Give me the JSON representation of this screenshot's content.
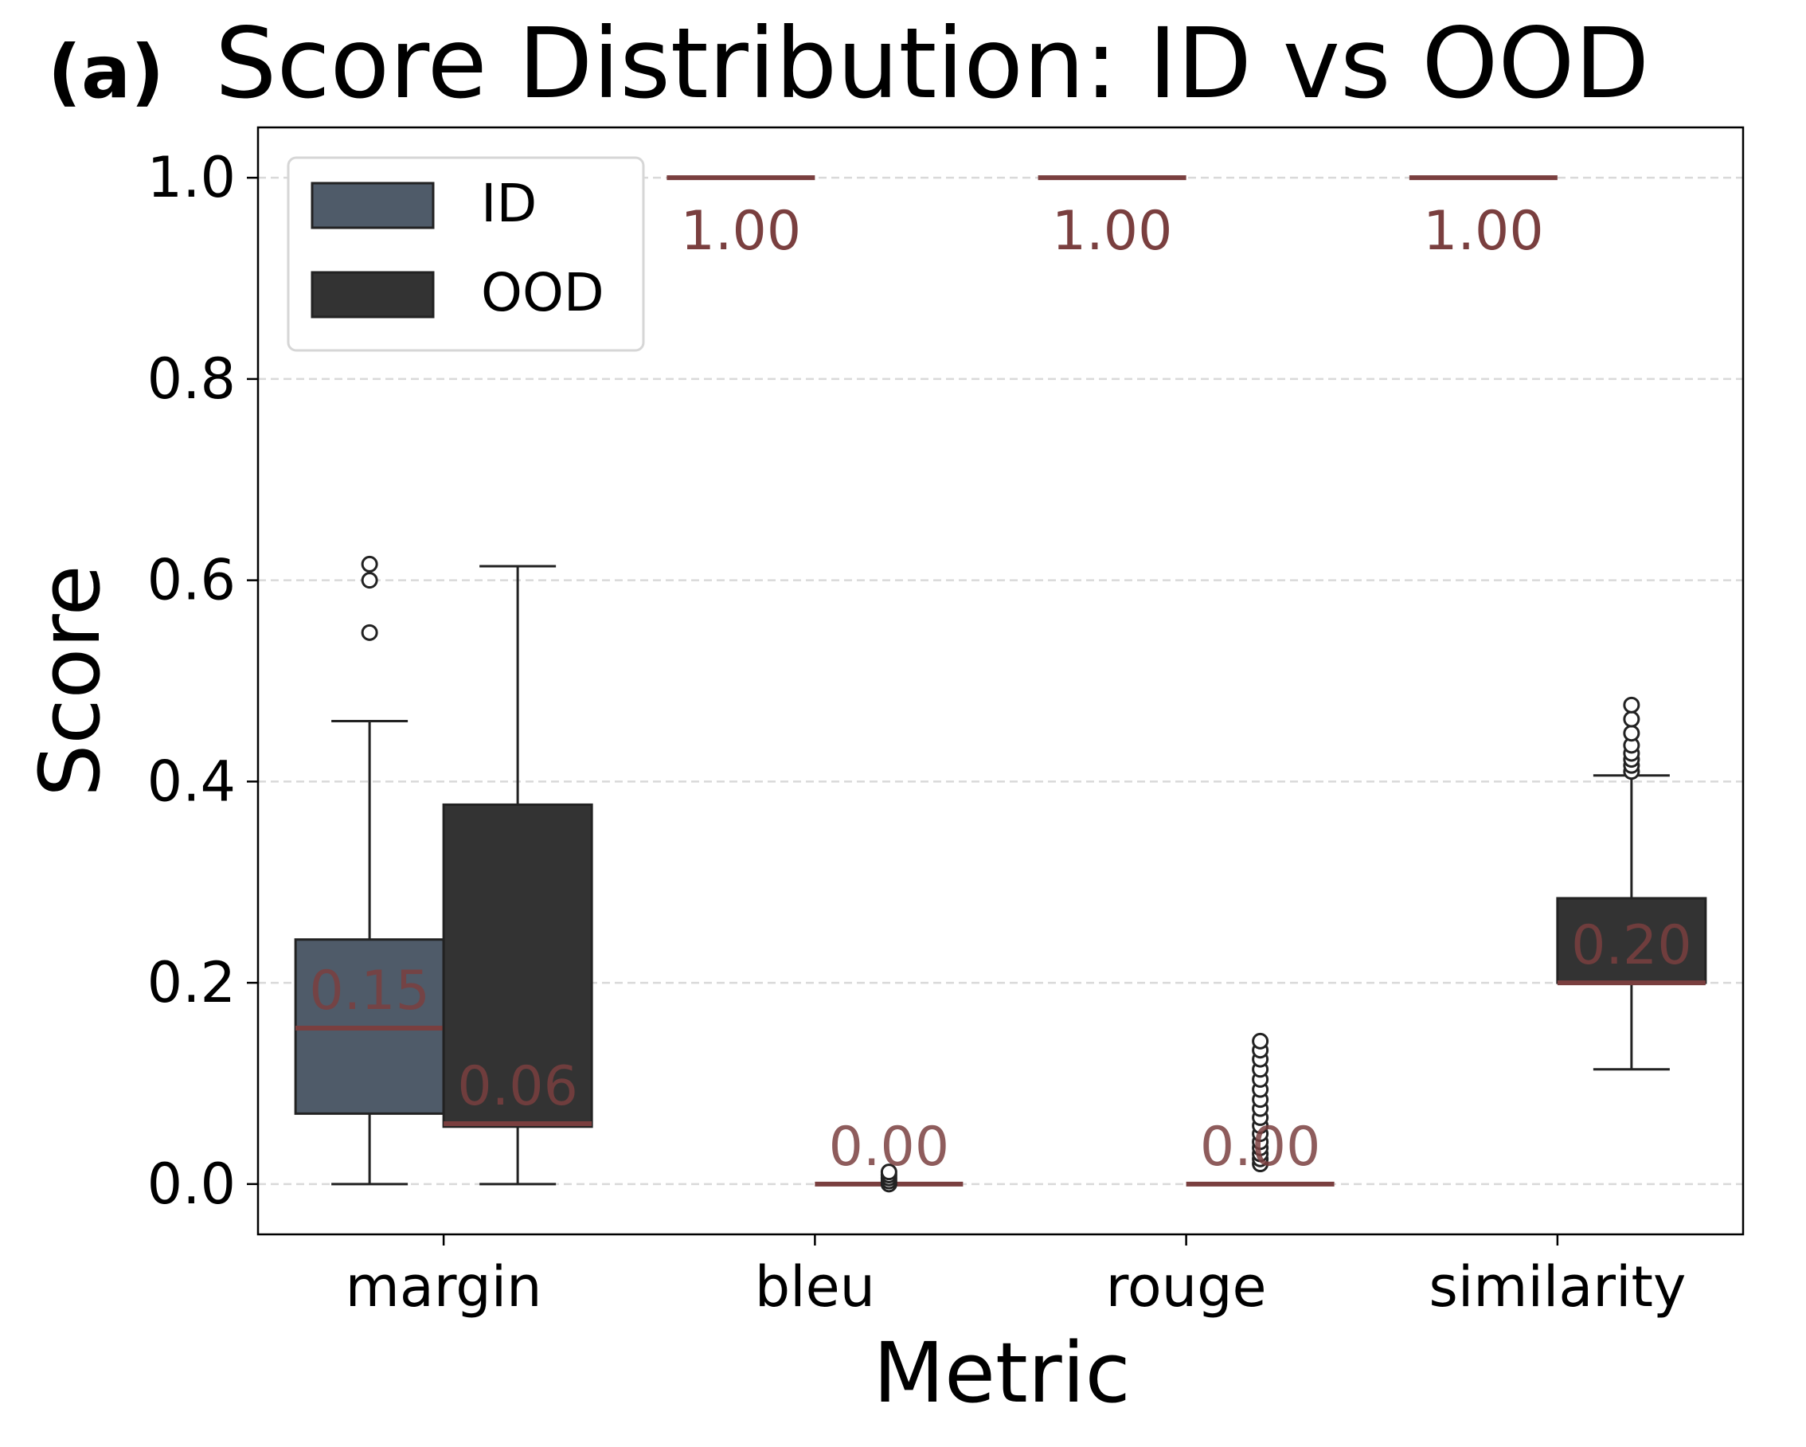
{
  "panel_label": "(a)",
  "chart_data": {
    "type": "box",
    "title": "Score Distribution: ID vs OOD",
    "xlabel": "Metric",
    "ylabel": "Score",
    "ylim": [
      -0.05,
      1.05
    ],
    "yticks": [
      0.0,
      0.2,
      0.4,
      0.6,
      0.8,
      1.0
    ],
    "ytick_labels": [
      "0.0",
      "0.2",
      "0.4",
      "0.6",
      "0.8",
      "1.0"
    ],
    "grid": "y-dashed",
    "categories": [
      "margin",
      "bleu",
      "rouge",
      "similarity"
    ],
    "legend": {
      "position": "top-left",
      "entries": [
        "ID",
        "OOD"
      ]
    },
    "colors": {
      "ID": "#4f5b69",
      "OOD": "#333333",
      "median": "#7a3f3f",
      "grid": "#d9d9d9"
    },
    "series": [
      {
        "name": "ID",
        "boxes": [
          {
            "category": "margin",
            "whisker_low": 0.0,
            "q1": 0.07,
            "median": 0.155,
            "q3": 0.243,
            "whisker_high": 0.46,
            "outliers": [
              0.548,
              0.6,
              0.616
            ],
            "median_label": "0.15"
          },
          {
            "category": "bleu",
            "whisker_low": 1.0,
            "q1": 1.0,
            "median": 1.0,
            "q3": 1.0,
            "whisker_high": 1.0,
            "outliers": [],
            "median_label": "1.00"
          },
          {
            "category": "rouge",
            "whisker_low": 1.0,
            "q1": 1.0,
            "median": 1.0,
            "q3": 1.0,
            "whisker_high": 1.0,
            "outliers": [],
            "median_label": "1.00"
          },
          {
            "category": "similarity",
            "whisker_low": 1.0,
            "q1": 1.0,
            "median": 1.0,
            "q3": 1.0,
            "whisker_high": 1.0,
            "outliers": [],
            "median_label": "1.00"
          }
        ]
      },
      {
        "name": "OOD",
        "boxes": [
          {
            "category": "margin",
            "whisker_low": 0.0,
            "q1": 0.057,
            "median": 0.06,
            "q3": 0.377,
            "whisker_high": 0.614,
            "outliers": [],
            "median_label": "0.06"
          },
          {
            "category": "bleu",
            "whisker_low": 0.0,
            "q1": 0.0,
            "median": 0.0,
            "q3": 0.0,
            "whisker_high": 0.0,
            "outliers": [
              0.0,
              0.003,
              0.006,
              0.009,
              0.012
            ],
            "median_label": "0.00"
          },
          {
            "category": "rouge",
            "whisker_low": 0.0,
            "q1": 0.0,
            "median": 0.0,
            "q3": 0.0,
            "whisker_high": 0.0,
            "outliers": [
              0.02,
              0.025,
              0.03,
              0.036,
              0.042,
              0.05,
              0.058,
              0.066,
              0.075,
              0.084,
              0.094,
              0.104,
              0.114,
              0.124,
              0.133,
              0.142
            ],
            "median_label": "0.00"
          },
          {
            "category": "similarity",
            "whisker_low": 0.114,
            "q1": 0.2,
            "median": 0.2,
            "q3": 0.284,
            "whisker_high": 0.406,
            "outliers": [
              0.41,
              0.416,
              0.422,
              0.428,
              0.436,
              0.448,
              0.462,
              0.476
            ],
            "median_label": "0.20"
          }
        ]
      }
    ]
  }
}
